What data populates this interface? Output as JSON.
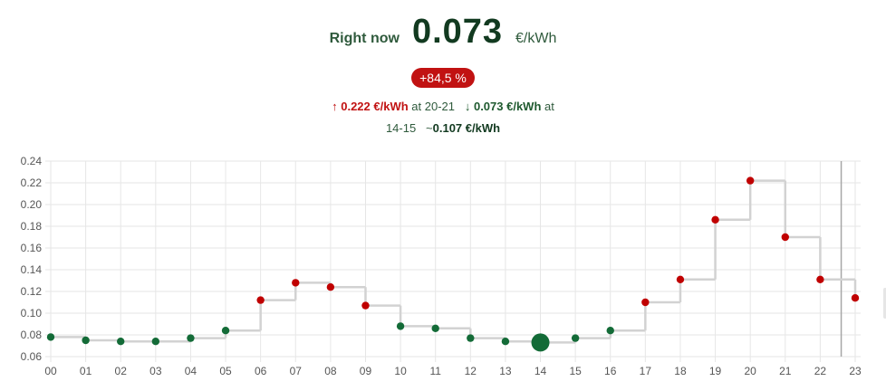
{
  "header": {
    "label": "Right now",
    "value": "0.073",
    "unit": "€/kWh"
  },
  "badge": "+84,5 %",
  "stats": {
    "high_arrow": "↑",
    "high_value": "0.222 €/kWh",
    "high_at": "at 20-21",
    "low_arrow": "↓",
    "low_value": "0.073 €/kWh",
    "low_at": "at",
    "low_period": "14-15",
    "avg_sym": "~",
    "avg_value": "0.107 €/kWh"
  },
  "colors": {
    "low": "#136b37",
    "high": "#c00000",
    "step": "#d2d2d2",
    "grid": "#e6e6e6",
    "now_line": "#a6a6a6"
  },
  "chart_data": {
    "type": "line",
    "title": "",
    "xlabel": "",
    "ylabel": "",
    "step": true,
    "categories": [
      "00",
      "01",
      "02",
      "03",
      "04",
      "05",
      "06",
      "07",
      "08",
      "09",
      "10",
      "11",
      "12",
      "13",
      "14",
      "15",
      "16",
      "17",
      "18",
      "19",
      "20",
      "21",
      "22",
      "23"
    ],
    "values": [
      0.078,
      0.075,
      0.074,
      0.074,
      0.077,
      0.084,
      0.112,
      0.128,
      0.124,
      0.107,
      0.088,
      0.086,
      0.077,
      0.074,
      0.073,
      0.077,
      0.084,
      0.11,
      0.131,
      0.186,
      0.222,
      0.17,
      0.131,
      0.114
    ],
    "point_colors": [
      "low",
      "low",
      "low",
      "low",
      "low",
      "low",
      "high",
      "high",
      "high",
      "high",
      "low",
      "low",
      "low",
      "low",
      "low",
      "low",
      "low",
      "high",
      "high",
      "high",
      "high",
      "high",
      "high",
      "high"
    ],
    "current_hour": "14",
    "now_marker_x": 22.6,
    "ylim": [
      0.06,
      0.24
    ],
    "yticks": [
      "0.06",
      "0.08",
      "0.10",
      "0.12",
      "0.14",
      "0.16",
      "0.18",
      "0.20",
      "0.22",
      "0.24"
    ],
    "grid": true,
    "legend": "none"
  }
}
